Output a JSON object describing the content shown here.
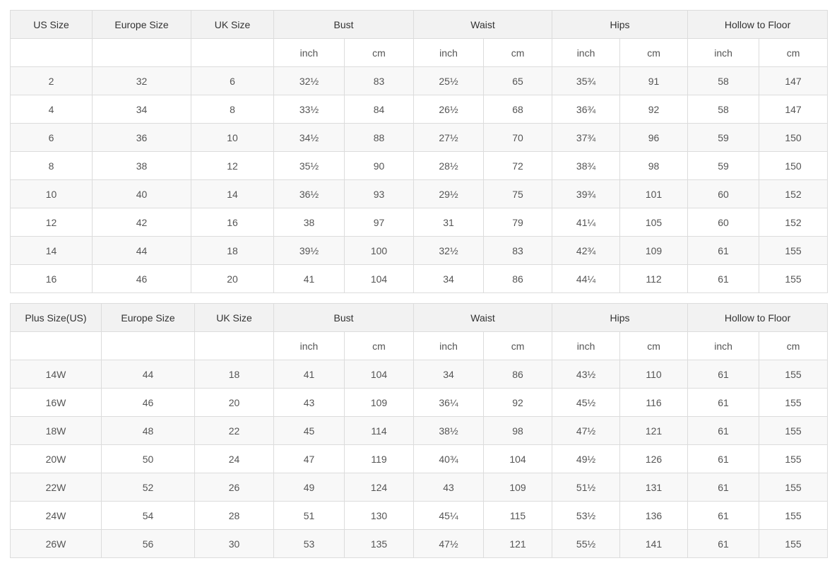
{
  "colors": {
    "border": "#dcdcdc",
    "header_bg": "#f2f2f2",
    "alt_row_bg": "#f8f8f8",
    "row_bg": "#ffffff",
    "header_text": "#333333",
    "cell_text": "#555555"
  },
  "tables": [
    {
      "name": "standard-sizes",
      "id_columns": [
        "US Size",
        "Europe Size",
        "UK Size"
      ],
      "groups": [
        {
          "label": "Bust",
          "units": [
            "inch",
            "cm"
          ]
        },
        {
          "label": "Waist",
          "units": [
            "inch",
            "cm"
          ]
        },
        {
          "label": "Hips",
          "units": [
            "inch",
            "cm"
          ]
        },
        {
          "label": "Hollow to Floor",
          "units": [
            "inch",
            "cm"
          ]
        }
      ],
      "rows": [
        [
          "2",
          "32",
          "6",
          "32½",
          "83",
          "25½",
          "65",
          "35¾",
          "91",
          "58",
          "147"
        ],
        [
          "4",
          "34",
          "8",
          "33½",
          "84",
          "26½",
          "68",
          "36¾",
          "92",
          "58",
          "147"
        ],
        [
          "6",
          "36",
          "10",
          "34½",
          "88",
          "27½",
          "70",
          "37¾",
          "96",
          "59",
          "150"
        ],
        [
          "8",
          "38",
          "12",
          "35½",
          "90",
          "28½",
          "72",
          "38¾",
          "98",
          "59",
          "150"
        ],
        [
          "10",
          "40",
          "14",
          "36½",
          "93",
          "29½",
          "75",
          "39¾",
          "101",
          "60",
          "152"
        ],
        [
          "12",
          "42",
          "16",
          "38",
          "97",
          "31",
          "79",
          "41¼",
          "105",
          "60",
          "152"
        ],
        [
          "14",
          "44",
          "18",
          "39½",
          "100",
          "32½",
          "83",
          "42¾",
          "109",
          "61",
          "155"
        ],
        [
          "16",
          "46",
          "20",
          "41",
          "104",
          "34",
          "86",
          "44¼",
          "112",
          "61",
          "155"
        ]
      ]
    },
    {
      "name": "plus-sizes",
      "id_columns": [
        "Plus Size(US)",
        "Europe Size",
        "UK Size"
      ],
      "groups": [
        {
          "label": "Bust",
          "units": [
            "inch",
            "cm"
          ]
        },
        {
          "label": "Waist",
          "units": [
            "inch",
            "cm"
          ]
        },
        {
          "label": "Hips",
          "units": [
            "inch",
            "cm"
          ]
        },
        {
          "label": "Hollow to Floor",
          "units": [
            "inch",
            "cm"
          ]
        }
      ],
      "rows": [
        [
          "14W",
          "44",
          "18",
          "41",
          "104",
          "34",
          "86",
          "43½",
          "110",
          "61",
          "155"
        ],
        [
          "16W",
          "46",
          "20",
          "43",
          "109",
          "36¼",
          "92",
          "45½",
          "116",
          "61",
          "155"
        ],
        [
          "18W",
          "48",
          "22",
          "45",
          "114",
          "38½",
          "98",
          "47½",
          "121",
          "61",
          "155"
        ],
        [
          "20W",
          "50",
          "24",
          "47",
          "119",
          "40¾",
          "104",
          "49½",
          "126",
          "61",
          "155"
        ],
        [
          "22W",
          "52",
          "26",
          "49",
          "124",
          "43",
          "109",
          "51½",
          "131",
          "61",
          "155"
        ],
        [
          "24W",
          "54",
          "28",
          "51",
          "130",
          "45¼",
          "115",
          "53½",
          "136",
          "61",
          "155"
        ],
        [
          "26W",
          "56",
          "30",
          "53",
          "135",
          "47½",
          "121",
          "55½",
          "141",
          "61",
          "155"
        ]
      ]
    }
  ]
}
